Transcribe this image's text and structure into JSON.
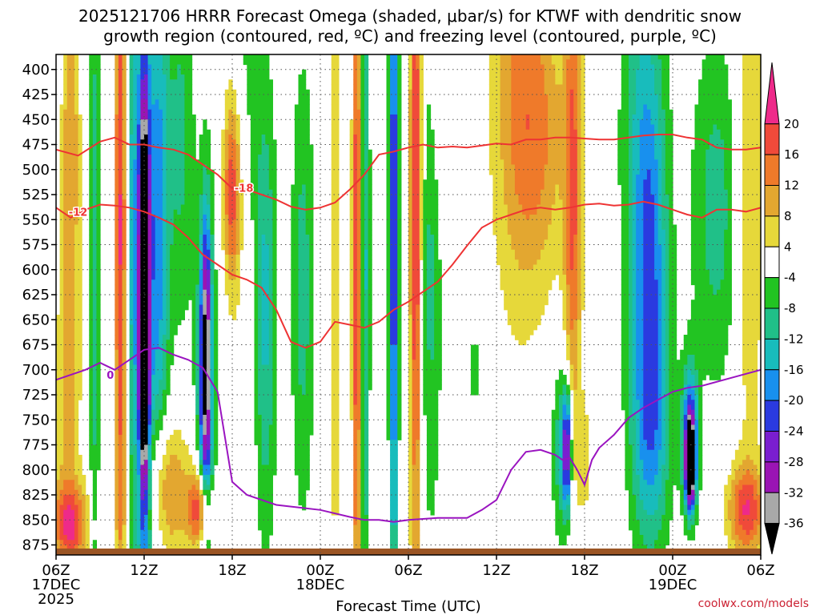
{
  "header": {
    "title_line1": "2025121706 HRRR Forecast Omega (shaded, μbar/s) for KTWF with dendritic snow",
    "title_line2": "growth region (contoured, red, ºC) and freezing level (contoured, purple, ºC)"
  },
  "footer": {
    "credit": "coolwx.com/models"
  },
  "chart_data": {
    "type": "heatmap",
    "xlabel": "Forecast Time (UTC)",
    "y_axis": {
      "label": "",
      "ticks": [
        400,
        425,
        450,
        475,
        500,
        525,
        550,
        575,
        600,
        625,
        650,
        675,
        700,
        725,
        750,
        775,
        800,
        825,
        850,
        875
      ],
      "range": [
        385,
        885
      ],
      "direction": "pressure decreasing upward"
    },
    "x_axis": {
      "ticks": [
        {
          "h": 0,
          "label": "06Z",
          "sub": "17DEC",
          "sub2": "2025"
        },
        {
          "h": 6,
          "label": "12Z",
          "sub": "",
          "sub2": ""
        },
        {
          "h": 12,
          "label": "18Z",
          "sub": "",
          "sub2": ""
        },
        {
          "h": 18,
          "label": "00Z",
          "sub": "18DEC",
          "sub2": ""
        },
        {
          "h": 24,
          "label": "06Z",
          "sub": "",
          "sub2": ""
        },
        {
          "h": 30,
          "label": "12Z",
          "sub": "",
          "sub2": ""
        },
        {
          "h": 36,
          "label": "18Z",
          "sub": "",
          "sub2": ""
        },
        {
          "h": 42,
          "label": "00Z",
          "sub": "19DEC",
          "sub2": ""
        },
        {
          "h": 48,
          "label": "06Z",
          "sub": "",
          "sub2": ""
        }
      ],
      "range_hours": [
        0,
        48
      ]
    },
    "colorbar": {
      "labels": [
        20,
        16,
        12,
        8,
        4,
        -4,
        -8,
        -12,
        -16,
        -20,
        -24,
        -28,
        -32,
        -36
      ],
      "bins": [
        {
          "lo": 20,
          "hi": 99,
          "color": "#ee2a8a"
        },
        {
          "lo": 16,
          "hi": 20,
          "color": "#f04a3a"
        },
        {
          "lo": 12,
          "hi": 16,
          "color": "#ef7a2a"
        },
        {
          "lo": 8,
          "hi": 12,
          "color": "#e3a730"
        },
        {
          "lo": 4,
          "hi": 8,
          "color": "#e6d83a"
        },
        {
          "lo": -4,
          "hi": 4,
          "color": "#ffffff"
        },
        {
          "lo": -8,
          "hi": -4,
          "color": "#22c422"
        },
        {
          "lo": -12,
          "hi": -8,
          "color": "#20c088"
        },
        {
          "lo": -16,
          "hi": -12,
          "color": "#18bcbc"
        },
        {
          "lo": -20,
          "hi": -16,
          "color": "#1890ee"
        },
        {
          "lo": -24,
          "hi": -20,
          "color": "#2a3ae0"
        },
        {
          "lo": -28,
          "hi": -24,
          "color": "#7a1ed0"
        },
        {
          "lo": -32,
          "hi": -28,
          "color": "#9a14b4"
        },
        {
          "lo": -36,
          "hi": -32,
          "color": "#a8a8a8"
        },
        {
          "lo": -99,
          "hi": -36,
          "color": "#000000"
        }
      ]
    },
    "omega_features": [
      {
        "h": 1.0,
        "p": 480,
        "w": 0.6,
        "hp": 260,
        "v": 12
      },
      {
        "h": 0.5,
        "p": 760,
        "w": 1.2,
        "hp": 150,
        "v": 6
      },
      {
        "h": 1.0,
        "p": 855,
        "w": 1.2,
        "hp": 40,
        "v": 18
      },
      {
        "h": 2.6,
        "p": 600,
        "w": 0.35,
        "hp": 420,
        "v": -10
      },
      {
        "h": 4.4,
        "p": 560,
        "w": 0.4,
        "hp": 420,
        "v": 21
      },
      {
        "h": 5.2,
        "p": 540,
        "w": 0.5,
        "hp": 400,
        "v": -12
      },
      {
        "h": 6.0,
        "p": 630,
        "w": 0.3,
        "hp": 180,
        "v": -42
      },
      {
        "h": 6.0,
        "p": 650,
        "w": 0.55,
        "hp": 330,
        "v": -24
      },
      {
        "h": 7.0,
        "p": 550,
        "w": 0.7,
        "hp": 280,
        "v": -18
      },
      {
        "h": 7.5,
        "p": 820,
        "w": 1.6,
        "hp": 70,
        "v": 14
      },
      {
        "h": 9.8,
        "p": 840,
        "w": 0.8,
        "hp": 40,
        "v": 22
      },
      {
        "h": 8.5,
        "p": 470,
        "w": 0.9,
        "hp": 200,
        "v": -9
      },
      {
        "h": 10.2,
        "p": 690,
        "w": 0.35,
        "hp": 140,
        "v": -28
      },
      {
        "h": 10.2,
        "p": 720,
        "w": 0.7,
        "hp": 200,
        "v": -14
      },
      {
        "h": 12.0,
        "p": 520,
        "w": 0.6,
        "hp": 100,
        "v": 20
      },
      {
        "h": 12.8,
        "p": 480,
        "w": 1.0,
        "hp": 260,
        "v": -6
      },
      {
        "h": 13.0,
        "p": 650,
        "w": 1.0,
        "hp": 200,
        "v": 6
      },
      {
        "h": 14.2,
        "p": 640,
        "w": 0.8,
        "hp": 230,
        "v": -14
      },
      {
        "h": 16.8,
        "p": 620,
        "w": 0.8,
        "hp": 230,
        "v": -10
      },
      {
        "h": 19.0,
        "p": 550,
        "w": 0.4,
        "hp": 380,
        "v": 8
      },
      {
        "h": 20.5,
        "p": 600,
        "w": 0.3,
        "hp": 400,
        "v": 22
      },
      {
        "h": 21.0,
        "p": 600,
        "w": 0.35,
        "hp": 380,
        "v": -14
      },
      {
        "h": 23.0,
        "p": 560,
        "w": 0.3,
        "hp": 380,
        "v": -26
      },
      {
        "h": 24.5,
        "p": 540,
        "w": 0.4,
        "hp": 380,
        "v": 22
      },
      {
        "h": 25.5,
        "p": 560,
        "w": 0.8,
        "hp": 300,
        "v": -10
      },
      {
        "h": 26.0,
        "p": 420,
        "w": 1.0,
        "hp": 140,
        "v": 6
      },
      {
        "h": 28.5,
        "p": 700,
        "w": 0.4,
        "hp": 40,
        "v": -7
      },
      {
        "h": 31.5,
        "p": 400,
        "w": 2.0,
        "hp": 260,
        "v": 10
      },
      {
        "h": 33.0,
        "p": 470,
        "w": 2.0,
        "hp": 140,
        "v": 9
      },
      {
        "h": 35.2,
        "p": 530,
        "w": 0.6,
        "hp": 250,
        "v": 16
      },
      {
        "h": 34.8,
        "p": 780,
        "w": 0.3,
        "hp": 60,
        "v": -26
      },
      {
        "h": 34.4,
        "p": 780,
        "w": 0.6,
        "hp": 90,
        "v": -12
      },
      {
        "h": 36.0,
        "p": 790,
        "w": 0.5,
        "hp": 60,
        "v": 6
      },
      {
        "h": 39.8,
        "p": 450,
        "w": 1.5,
        "hp": 250,
        "v": -9
      },
      {
        "h": 40.5,
        "p": 600,
        "w": 1.2,
        "hp": 200,
        "v": -16
      },
      {
        "h": 40.5,
        "p": 770,
        "w": 1.4,
        "hp": 120,
        "v": -12
      },
      {
        "h": 43.2,
        "p": 770,
        "w": 0.55,
        "hp": 70,
        "v": -26
      },
      {
        "h": 43.2,
        "p": 795,
        "w": 0.3,
        "hp": 38,
        "v": -40
      },
      {
        "h": 45.0,
        "p": 540,
        "w": 1.8,
        "hp": 180,
        "v": -10
      },
      {
        "h": 47.2,
        "p": 520,
        "w": 1.0,
        "hp": 300,
        "v": 9
      },
      {
        "h": 47.0,
        "p": 840,
        "w": 1.3,
        "hp": 45,
        "v": 18
      }
    ],
    "contours": [
      {
        "name": "dgz -18",
        "color": "#ee3333",
        "label": "-18",
        "label_h": 12.8,
        "label_p": 518,
        "points": [
          [
            0,
            480
          ],
          [
            1.5,
            486
          ],
          [
            3,
            472
          ],
          [
            4,
            468
          ],
          [
            5,
            475
          ],
          [
            6,
            475
          ],
          [
            7,
            478
          ],
          [
            8,
            480
          ],
          [
            9,
            485
          ],
          [
            10,
            495
          ],
          [
            11,
            505
          ],
          [
            12,
            519
          ],
          [
            13,
            520
          ],
          [
            14,
            525
          ],
          [
            15,
            530
          ],
          [
            16,
            537
          ],
          [
            17,
            540
          ],
          [
            18,
            538
          ],
          [
            19,
            533
          ],
          [
            20,
            520
          ],
          [
            21,
            505
          ],
          [
            22,
            485
          ],
          [
            23,
            482
          ],
          [
            24,
            478
          ],
          [
            25,
            475
          ],
          [
            26,
            478
          ],
          [
            27,
            477
          ],
          [
            28,
            478
          ],
          [
            29,
            476
          ],
          [
            30,
            474
          ],
          [
            31,
            475
          ],
          [
            32,
            470
          ],
          [
            33,
            470
          ],
          [
            34,
            468
          ],
          [
            35,
            468
          ],
          [
            36,
            469
          ],
          [
            37,
            470
          ],
          [
            38,
            470
          ],
          [
            39,
            468
          ],
          [
            40,
            466
          ],
          [
            41,
            465
          ],
          [
            42,
            465
          ],
          [
            43,
            468
          ],
          [
            44,
            470
          ],
          [
            45,
            478
          ],
          [
            46,
            480
          ],
          [
            47,
            480
          ],
          [
            48,
            478
          ]
        ]
      },
      {
        "name": "dgz -12",
        "color": "#ee3333",
        "label": "-12",
        "label_h": 1.5,
        "label_p": 542,
        "points": [
          [
            0,
            538
          ],
          [
            1,
            548
          ],
          [
            2,
            540
          ],
          [
            3,
            535
          ],
          [
            4,
            536
          ],
          [
            5,
            538
          ],
          [
            6,
            542
          ],
          [
            7,
            548
          ],
          [
            8,
            555
          ],
          [
            9,
            568
          ],
          [
            10,
            585
          ],
          [
            11,
            595
          ],
          [
            12,
            605
          ],
          [
            13,
            610
          ],
          [
            14,
            618
          ],
          [
            15,
            640
          ],
          [
            16,
            672
          ],
          [
            17,
            678
          ],
          [
            18,
            672
          ],
          [
            19,
            652
          ],
          [
            20,
            655
          ],
          [
            21,
            658
          ],
          [
            22,
            652
          ],
          [
            23,
            640
          ],
          [
            24,
            632
          ],
          [
            25,
            622
          ],
          [
            26,
            612
          ],
          [
            27,
            595
          ],
          [
            28,
            576
          ],
          [
            29,
            558
          ],
          [
            30,
            550
          ],
          [
            31,
            545
          ],
          [
            32,
            540
          ],
          [
            33,
            538
          ],
          [
            34,
            540
          ],
          [
            35,
            538
          ],
          [
            36,
            535
          ],
          [
            37,
            534
          ],
          [
            38,
            536
          ],
          [
            39,
            535
          ],
          [
            40,
            532
          ],
          [
            41,
            535
          ],
          [
            42,
            540
          ],
          [
            43,
            545
          ],
          [
            44,
            548
          ],
          [
            45,
            540
          ],
          [
            46,
            540
          ],
          [
            47,
            542
          ],
          [
            48,
            538
          ]
        ]
      },
      {
        "name": "freezing level 0",
        "color": "#9a14c0",
        "label": "0",
        "label_h": 3.7,
        "label_p": 705,
        "points": [
          [
            0,
            710
          ],
          [
            2,
            700
          ],
          [
            3,
            693
          ],
          [
            4,
            700
          ],
          [
            5,
            690
          ],
          [
            6,
            680
          ],
          [
            7,
            678
          ],
          [
            8,
            685
          ],
          [
            9,
            690
          ],
          [
            10,
            698
          ],
          [
            11,
            722
          ],
          [
            12,
            812
          ],
          [
            13,
            825
          ],
          [
            15,
            835
          ],
          [
            18,
            840
          ],
          [
            20,
            847
          ],
          [
            21,
            850
          ],
          [
            22,
            850
          ],
          [
            23,
            852
          ],
          [
            24,
            850
          ],
          [
            26,
            848
          ],
          [
            28,
            848
          ],
          [
            29,
            840
          ],
          [
            30,
            830
          ],
          [
            31,
            800
          ],
          [
            32,
            782
          ],
          [
            33,
            780
          ],
          [
            34,
            785
          ],
          [
            34.5,
            790
          ],
          [
            35,
            788
          ],
          [
            35.5,
            800
          ],
          [
            36,
            815
          ],
          [
            36.5,
            790
          ],
          [
            37,
            778
          ],
          [
            38,
            765
          ],
          [
            39,
            748
          ],
          [
            40,
            738
          ],
          [
            41,
            730
          ],
          [
            42,
            722
          ],
          [
            43,
            718
          ],
          [
            44,
            716
          ],
          [
            46,
            708
          ],
          [
            48,
            700
          ]
        ]
      }
    ]
  }
}
